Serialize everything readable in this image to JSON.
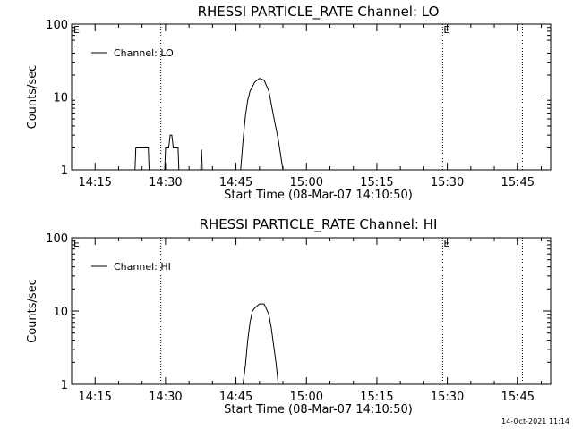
{
  "timestamp": "14-Oct-2021 11:14",
  "chart_data": [
    {
      "type": "line",
      "title": "RHESSI PARTICLE_RATE Channel: LO",
      "xlabel": "Start Time (08-Mar-07 14:10:50)",
      "ylabel": "Counts/sec",
      "yscale": "log",
      "ylim": [
        1,
        100
      ],
      "xlim": [
        "14:10",
        "15:52"
      ],
      "x_ticks": [
        "14:15",
        "14:30",
        "14:45",
        "15:00",
        "15:15",
        "15:30",
        "15:45"
      ],
      "y_ticks": [
        "1",
        "10",
        "100"
      ],
      "legend": "top-left",
      "vlines": [
        {
          "time": "14:29",
          "label": ""
        },
        {
          "time": "15:29",
          "label": "E"
        },
        {
          "time": "15:46",
          "label": ""
        }
      ],
      "corner_label": "E",
      "series": [
        {
          "name": "Channel: LO",
          "points": [
            [
              "14:23:30",
              1
            ],
            [
              "14:23:40",
              2
            ],
            [
              "14:26:20",
              2
            ],
            [
              "14:26:30",
              1
            ],
            [
              "14:29:50",
              1
            ],
            [
              "14:30:00",
              2
            ],
            [
              "14:30:40",
              2
            ],
            [
              "14:31:00",
              3
            ],
            [
              "14:31:20",
              3
            ],
            [
              "14:31:40",
              2
            ],
            [
              "14:32:40",
              2
            ],
            [
              "14:32:50",
              1
            ],
            [
              "14:37:30",
              1
            ],
            [
              "14:37:40",
              1.9
            ],
            [
              "14:37:50",
              1
            ],
            [
              "14:46:00",
              1
            ],
            [
              "14:46:30",
              2.5
            ],
            [
              "14:47:00",
              5.5
            ],
            [
              "14:47:30",
              9
            ],
            [
              "14:48:00",
              12
            ],
            [
              "14:49:00",
              16
            ],
            [
              "14:50:00",
              18
            ],
            [
              "14:51:00",
              17
            ],
            [
              "14:52:00",
              12
            ],
            [
              "14:53:00",
              5.5
            ],
            [
              "14:54:00",
              2.6
            ],
            [
              "14:55:00",
              1
            ]
          ]
        }
      ]
    },
    {
      "type": "line",
      "title": "RHESSI PARTICLE_RATE Channel: HI",
      "xlabel": "Start Time (08-Mar-07 14:10:50)",
      "ylabel": "Counts/sec",
      "yscale": "log",
      "ylim": [
        1,
        100
      ],
      "xlim": [
        "14:10",
        "15:52"
      ],
      "x_ticks": [
        "14:15",
        "14:30",
        "14:45",
        "15:00",
        "15:15",
        "15:30",
        "15:45"
      ],
      "y_ticks": [
        "1",
        "10",
        "100"
      ],
      "legend": "top-left",
      "vlines": [
        {
          "time": "14:29",
          "label": ""
        },
        {
          "time": "15:29",
          "label": "E"
        },
        {
          "time": "15:46",
          "label": ""
        }
      ],
      "corner_label": "E",
      "series": [
        {
          "name": "Channel: HI",
          "points": [
            [
              "14:46:30",
              1
            ],
            [
              "14:47:00",
              1.8
            ],
            [
              "14:47:30",
              4
            ],
            [
              "14:48:00",
              7
            ],
            [
              "14:48:30",
              10
            ],
            [
              "14:49:00",
              11
            ],
            [
              "14:50:00",
              12.5
            ],
            [
              "14:51:00",
              12.5
            ],
            [
              "14:52:00",
              9
            ],
            [
              "14:52:30",
              6
            ],
            [
              "14:53:00",
              3.5
            ],
            [
              "14:53:30",
              2
            ],
            [
              "14:54:00",
              1
            ]
          ]
        }
      ]
    }
  ]
}
